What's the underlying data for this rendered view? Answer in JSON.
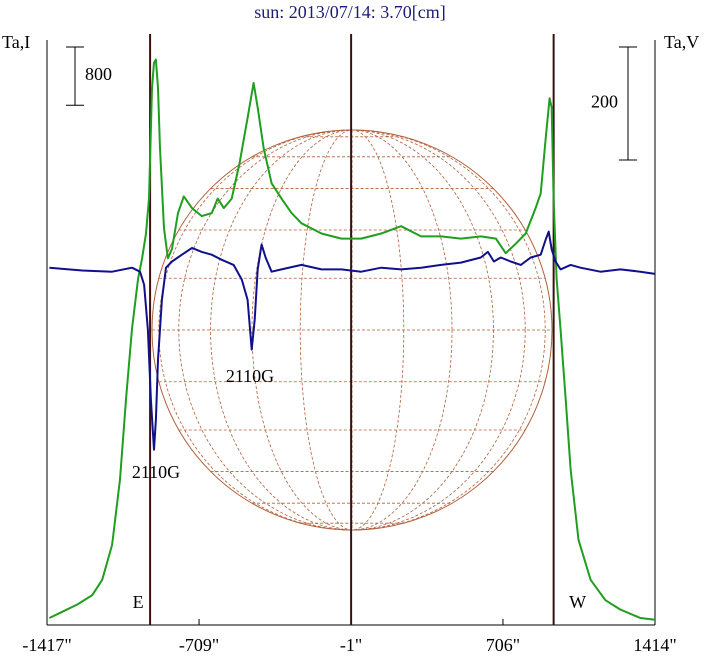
{
  "chart_data": {
    "type": "line",
    "title": "sun: 2013/07/14: 3.70[cm]",
    "y_label": "Ta,I",
    "y2_label": "Ta,V",
    "xlim": [
      -1417,
      1414
    ],
    "xticks": [
      {
        "value": -1417,
        "label": "-1417\""
      },
      {
        "value": -709,
        "label": "-709\""
      },
      {
        "value": -1,
        "label": "-1\""
      },
      {
        "value": 706,
        "label": "706\""
      },
      {
        "value": 1414,
        "label": "1414\""
      }
    ],
    "ylim": [
      0,
      8000
    ],
    "y2lim": [
      -620,
      410
    ],
    "scale_bars": [
      {
        "value": 800,
        "axis": "y"
      },
      {
        "value": 200,
        "axis": "y2"
      }
    ],
    "limb_lines": [
      {
        "x": -937,
        "label": "E"
      },
      {
        "x": -1
      },
      {
        "x": 942,
        "label": "W"
      }
    ],
    "annotations": [
      {
        "text": "2110G"
      },
      {
        "text": "2110G"
      }
    ],
    "series": [
      {
        "color": "#1f9e1f",
        "axis": "y",
        "x": [
          -1406,
          -1346,
          -1276,
          -1206,
          -1160,
          -1114,
          -1077,
          -1049,
          -1021,
          -993,
          -974,
          -956,
          -942,
          -928,
          -919,
          -910,
          -900,
          -891,
          -872,
          -854,
          -835,
          -807,
          -780,
          -742,
          -696,
          -650,
          -622,
          -594,
          -557,
          -520,
          -483,
          -455,
          -436,
          -408,
          -371,
          -325,
          -278,
          -232,
          -139,
          -46,
          46,
          139,
          232,
          325,
          418,
          510,
          603,
          673,
          719,
          766,
          812,
          858,
          882,
          905,
          923,
          933,
          942,
          956,
          974,
          998,
          1021,
          1058,
          1114,
          1183,
          1253,
          1346,
          1414
        ],
        "values": [
          55,
          140,
          240,
          370,
          580,
          1060,
          1960,
          3060,
          4030,
          4720,
          5000,
          5340,
          5820,
          7340,
          7690,
          7730,
          7340,
          6510,
          5410,
          5000,
          5130,
          5620,
          5850,
          5690,
          5580,
          5620,
          5820,
          5690,
          5820,
          6310,
          6930,
          7410,
          7070,
          6510,
          6030,
          5820,
          5620,
          5480,
          5340,
          5270,
          5270,
          5340,
          5440,
          5300,
          5300,
          5270,
          5300,
          5270,
          5070,
          5200,
          5340,
          5690,
          5890,
          6650,
          7200,
          7070,
          5820,
          4720,
          4030,
          3060,
          2100,
          1130,
          580,
          300,
          170,
          55,
          30
        ]
      },
      {
        "color": "#10108c",
        "axis": "y2",
        "x": [
          -1406,
          -1253,
          -1114,
          -1021,
          -984,
          -965,
          -947,
          -933,
          -919,
          -910,
          -900,
          -882,
          -863,
          -835,
          -789,
          -742,
          -696,
          -650,
          -603,
          -548,
          -510,
          -483,
          -464,
          -450,
          -436,
          -418,
          -399,
          -371,
          -325,
          -232,
          -139,
          -46,
          46,
          139,
          232,
          325,
          418,
          510,
          603,
          636,
          664,
          696,
          742,
          789,
          835,
          882,
          905,
          919,
          933,
          951,
          974,
          1021,
          1067,
          1160,
          1253,
          1346,
          1414
        ],
        "values": [
          7,
          2,
          0,
          7,
          0,
          -23,
          -103,
          -227,
          -315,
          -262,
          -156,
          -50,
          7,
          18,
          30,
          42,
          35,
          30,
          21,
          12,
          -14,
          -50,
          -138,
          -85,
          4,
          48,
          25,
          0,
          4,
          12,
          4,
          4,
          0,
          7,
          4,
          7,
          12,
          16,
          25,
          35,
          18,
          25,
          18,
          12,
          25,
          30,
          57,
          71,
          39,
          18,
          4,
          12,
          7,
          0,
          4,
          0,
          -4
        ]
      }
    ]
  }
}
